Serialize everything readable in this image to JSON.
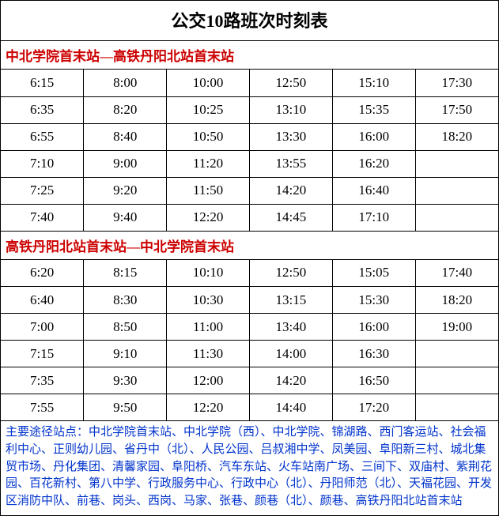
{
  "colors": {
    "border": "#000000",
    "section_header": "#cc0000",
    "footnote": "#0033cc",
    "background": "#ffffff",
    "text": "#000000"
  },
  "typography": {
    "title_fontsize": 22,
    "section_fontsize": 17,
    "cell_fontsize": 17,
    "footnote_fontsize": 15,
    "font_family": "SimSun"
  },
  "title": "公交10路班次时刻表",
  "sections": [
    {
      "header": "中北学院首末站—高铁丹阳北站首末站",
      "rows": [
        [
          "6:15",
          "8:00",
          "10:00",
          "12:50",
          "15:10",
          "17:30"
        ],
        [
          "6:35",
          "8:20",
          "10:25",
          "13:10",
          "15:35",
          "17:50"
        ],
        [
          "6:55",
          "8:40",
          "10:50",
          "13:30",
          "16:00",
          "18:20"
        ],
        [
          "7:10",
          "9:00",
          "11:20",
          "13:55",
          "16:20",
          ""
        ],
        [
          "7:25",
          "9:20",
          "11:50",
          "14:20",
          "16:40",
          ""
        ],
        [
          "7:40",
          "9:40",
          "12:20",
          "14:45",
          "17:10",
          ""
        ]
      ]
    },
    {
      "header": "高铁丹阳北站首末站—中北学院首末站",
      "rows": [
        [
          "6:20",
          "8:15",
          "10:10",
          "12:50",
          "15:05",
          "17:40"
        ],
        [
          "6:40",
          "8:30",
          "10:30",
          "13:15",
          "15:30",
          "18:20"
        ],
        [
          "7:00",
          "8:50",
          "11:00",
          "13:40",
          "16:00",
          "19:00"
        ],
        [
          "7:15",
          "9:10",
          "11:30",
          "14:00",
          "16:30",
          ""
        ],
        [
          "7:35",
          "9:30",
          "12:00",
          "14:20",
          "16:50",
          ""
        ],
        [
          "7:55",
          "9:50",
          "12:20",
          "14:40",
          "17:20",
          ""
        ]
      ]
    }
  ],
  "footnote_label": "主要途径站点：",
  "footnote_text": "中北学院首末站、中北学院（西）、中北学院、锦湖路、西门客运站、社会福利中心、正则幼儿园、省丹中（北）、人民公园、吕叔湘中学、凤美园、阜阳新三村、城北集贸市场、丹化集团、清馨家园、阜阳桥、汽车东站、火车站南广场、三间下、双庙村、紫荆花园、百花新村、第八中学、行政服务中心、行政中心（北）、丹阳师范（北）、天福花园、开发区消防中队、前巷、岗头、西岗、马家、张巷、颜巷（北）、颜巷、高铁丹阳北站首末站"
}
